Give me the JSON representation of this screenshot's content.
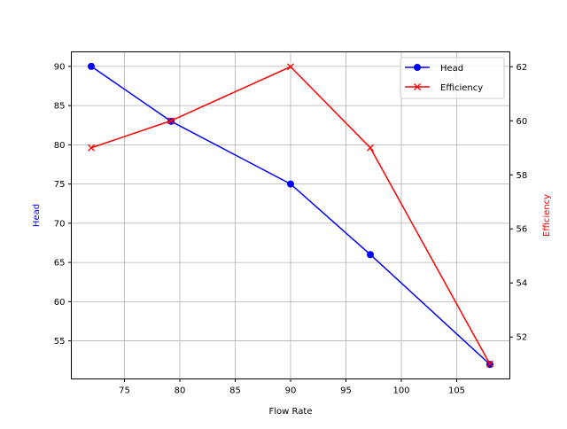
{
  "chart_data": {
    "type": "line",
    "title": "",
    "xlabel": "Flow Rate",
    "ylabel": "Head",
    "ylabel_right": "Efficiency",
    "x": [
      72,
      79.2,
      90,
      97.2,
      108
    ],
    "series": [
      {
        "name": "Head",
        "axis": "left",
        "values": [
          90,
          83,
          75,
          66,
          52
        ],
        "color": "#0000ff",
        "marker": "circle"
      },
      {
        "name": "Efficiency",
        "axis": "right",
        "values": [
          59,
          60,
          62,
          59,
          51
        ],
        "color": "#ff0000",
        "marker": "x"
      }
    ],
    "xlim": [
      70.2,
      109.8
    ],
    "ylim": [
      50.15,
      91.85
    ],
    "ylim_right": [
      50.45,
      62.55
    ],
    "xticks": [
      75,
      80,
      85,
      90,
      95,
      100,
      105
    ],
    "yticks": [
      55,
      60,
      65,
      70,
      75,
      80,
      85,
      90
    ],
    "yticks_right": [
      52,
      54,
      56,
      58,
      60,
      62
    ],
    "grid": true,
    "legend": "top-right"
  }
}
